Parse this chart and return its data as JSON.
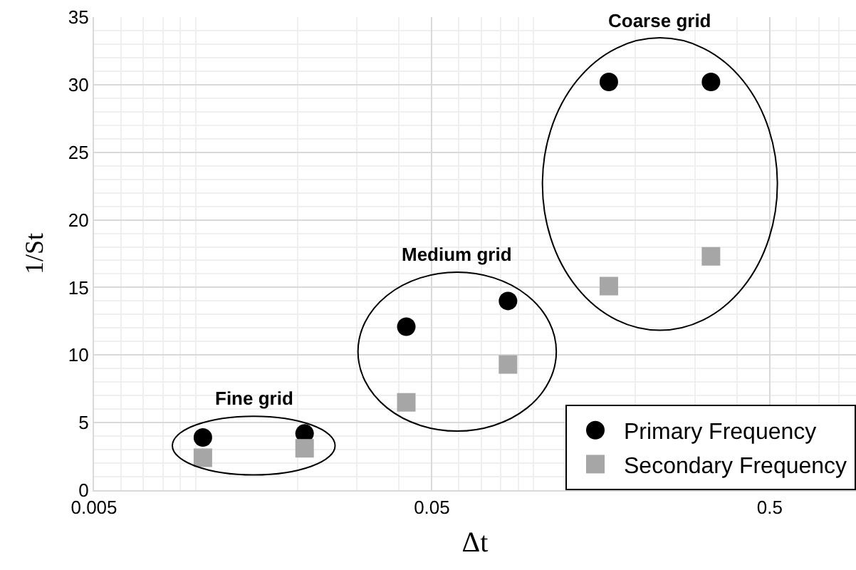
{
  "chart_data": {
    "type": "scatter",
    "xlabel": "Δt",
    "ylabel": "1/St",
    "log": "x",
    "xlim": [
      0.005,
      0.9
    ],
    "xticks": [
      0.005,
      0.05,
      0.5
    ],
    "ylim": [
      0,
      35
    ],
    "yticks": [
      0,
      5,
      10,
      15,
      20,
      25,
      30,
      35
    ],
    "grid": true,
    "legend": "bottom right",
    "x": [
      0.0105,
      0.021,
      0.042,
      0.084,
      0.167,
      0.335
    ],
    "series": [
      {
        "name": "Primary Frequency",
        "color": "#000000",
        "marker": "circle",
        "values": [
          3.9,
          4.2,
          12.1,
          14.0,
          30.2,
          30.2
        ]
      },
      {
        "name": "Secondary Frequency",
        "color": "#a6a6a6",
        "marker": "square",
        "values": [
          2.4,
          3.1,
          6.5,
          9.3,
          15.1,
          17.3
        ]
      }
    ],
    "annotations": [
      "Fine grid",
      "Medium grid",
      "Coarse grid"
    ]
  }
}
